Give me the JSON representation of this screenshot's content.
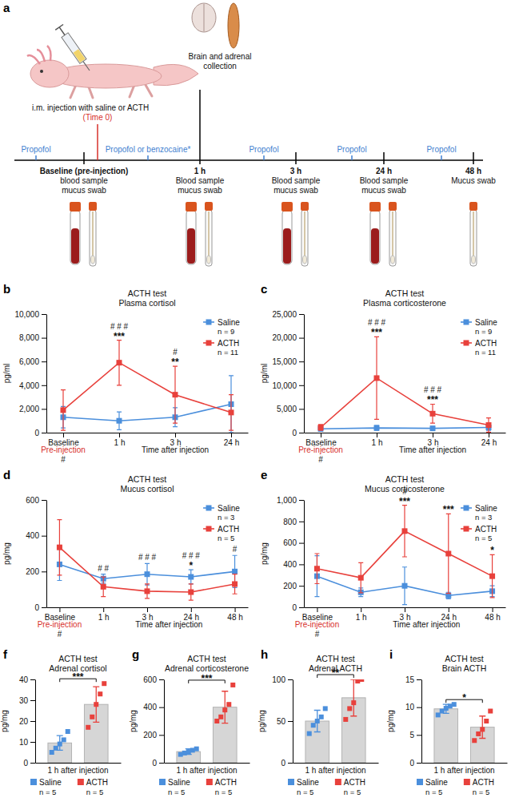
{
  "panel_a": {
    "letter": "a",
    "injection_label": "i.m. injection with saline or ACTH",
    "time_zero": "(Time 0)",
    "collection_label": "Brain and adrenal collection",
    "anesthesia": [
      "Propofol",
      "Propofol or benzocaine*",
      "Propofol",
      "Propofol",
      "Propofol"
    ],
    "timepoints": [
      {
        "time": "Baseline (pre-injection)",
        "lines": [
          "blood sample",
          "mucus swab"
        ],
        "blood": true,
        "swab": true
      },
      {
        "time": "1 h",
        "lines": [
          "Blood sample",
          "mucus swab"
        ],
        "blood": true,
        "swab": true
      },
      {
        "time": "3 h",
        "lines": [
          "Blood sample",
          "mucus swab"
        ],
        "blood": true,
        "swab": true
      },
      {
        "time": "24 h",
        "lines": [
          "Blood sample",
          "mucus swab"
        ],
        "blood": true,
        "swab": true
      },
      {
        "time": "48 h",
        "lines": [
          "Mucus swab"
        ],
        "blood": false,
        "swab": true
      }
    ]
  },
  "chart_data": [
    {
      "panel": "b",
      "type": "line",
      "title": "ACTH test",
      "subtitle": "Plasma cortisol",
      "x_label": "Time after injection",
      "y_label": "pg/ml",
      "categories": [
        "Baseline",
        "1 h",
        "3 h",
        "24 h"
      ],
      "first_category_note": "Pre-injection",
      "first_category_mark": "#",
      "ylim": [
        0,
        10000
      ],
      "yticks": [
        0,
        {
          "value": 2000,
          "label": "2,000"
        },
        {
          "value": 4000,
          "label": "4,000"
        },
        {
          "value": 6000,
          "label": "6,000"
        },
        {
          "value": 8000,
          "label": "8,000"
        },
        {
          "value": 10000,
          "label": "10,000"
        }
      ],
      "grid": false,
      "legend": "upper right",
      "marker": "square",
      "series": [
        {
          "name": "Saline",
          "n_label": "n = 9",
          "color": "#4b8fdc",
          "values": [
            1300,
            1000,
            1300,
            2400
          ],
          "errors": [
            900,
            750,
            800,
            2400
          ]
        },
        {
          "name": "ACTH",
          "n_label": "n = 11",
          "color": "#e8413c",
          "values": [
            1900,
            5900,
            3200,
            1700
          ],
          "errors": [
            1700,
            1900,
            2400,
            1500
          ]
        }
      ],
      "annotations": [
        {
          "x": 1,
          "stars": "***",
          "hashes": "# # #"
        },
        {
          "x": 2,
          "stars": "**",
          "hashes": "#"
        }
      ]
    },
    {
      "panel": "c",
      "type": "line",
      "title": "ACTH test",
      "subtitle": "Plasma corticosterone",
      "x_label": "Time after injection",
      "y_label": "pg/ml",
      "categories": [
        "Baseline",
        "1 h",
        "3 h",
        "24 h"
      ],
      "first_category_note": "Pre-injection",
      "first_category_mark": "#",
      "ylim": [
        0,
        25000
      ],
      "yticks": [
        0,
        {
          "value": 5000,
          "label": "5,000"
        },
        {
          "value": 10000,
          "label": "10,000"
        },
        {
          "value": 15000,
          "label": "15,000"
        },
        {
          "value": 20000,
          "label": "20,000"
        },
        {
          "value": 25000,
          "label": "25,000"
        }
      ],
      "grid": false,
      "legend": "upper right",
      "marker": "square",
      "series": [
        {
          "name": "Saline",
          "n_label": "n = 9",
          "color": "#4b8fdc",
          "values": [
            800,
            1000,
            900,
            1100
          ],
          "errors": [
            500,
            500,
            400,
            600
          ]
        },
        {
          "name": "ACTH",
          "n_label": "n = 11",
          "color": "#e8413c",
          "values": [
            1100,
            11500,
            4000,
            1600
          ],
          "errors": [
            600,
            8700,
            2000,
            1500
          ]
        }
      ],
      "annotations": [
        {
          "x": 1,
          "stars": "***",
          "hashes": "# # #"
        },
        {
          "x": 2,
          "stars": "***",
          "hashes": "# # #"
        }
      ]
    },
    {
      "panel": "d",
      "type": "line",
      "title": "ACTH test",
      "subtitle": "Mucus cortisol",
      "x_label": "Time after injection",
      "y_label": "pg/mg",
      "categories": [
        "Baseline",
        "1 h",
        "3 h",
        "24 h",
        "48 h"
      ],
      "first_category_note": "Pre-injection",
      "first_category_mark": "#",
      "ylim": [
        0,
        600
      ],
      "yticks": [
        0,
        200,
        400,
        600
      ],
      "grid": false,
      "legend": "upper right",
      "marker": "square",
      "series": [
        {
          "name": "Saline",
          "n_label": "n = 3",
          "color": "#4b8fdc",
          "values": [
            240,
            160,
            185,
            170,
            200
          ],
          "errors": [
            90,
            25,
            60,
            40,
            90
          ]
        },
        {
          "name": "ACTH",
          "n_label": "n = 5",
          "color": "#e8413c",
          "values": [
            335,
            115,
            90,
            85,
            130
          ],
          "errors": [
            155,
            55,
            40,
            45,
            55
          ]
        }
      ],
      "annotations": [
        {
          "x": 1,
          "hashes": "# #"
        },
        {
          "x": 2,
          "hashes": "# # #"
        },
        {
          "x": 3,
          "stars": "*",
          "hashes": "# # #"
        },
        {
          "x": 4,
          "hashes": "#"
        }
      ]
    },
    {
      "panel": "e",
      "type": "line",
      "title": "ACTH test",
      "subtitle": "Mucus corticosterone",
      "x_label": "Time after injection",
      "y_label": "pg/mg",
      "categories": [
        "Baseline",
        "1 h",
        "3 h",
        "24 h",
        "48 h"
      ],
      "first_category_note": "Pre-injection",
      "first_category_mark": "#",
      "ylim": [
        0,
        1000
      ],
      "yticks": [
        0,
        200,
        400,
        600,
        800,
        {
          "value": 1000,
          "label": "1,000"
        }
      ],
      "grid": false,
      "legend": "upper right",
      "marker": "square",
      "series": [
        {
          "name": "Saline",
          "n_label": "n = 3",
          "color": "#4b8fdc",
          "values": [
            290,
            140,
            200,
            110,
            150
          ],
          "errors": [
            190,
            40,
            175,
            30,
            50
          ]
        },
        {
          "name": "ACTH",
          "n_label": "n = 5",
          "color": "#e8413c",
          "values": [
            360,
            275,
            710,
            500,
            290
          ],
          "errors": [
            140,
            140,
            240,
            370,
            200
          ]
        }
      ],
      "annotations": [
        {
          "x": 2,
          "stars": "***",
          "hashes": "#"
        },
        {
          "x": 3,
          "stars": "***"
        },
        {
          "x": 4,
          "stars": "*"
        }
      ]
    },
    {
      "panel": "f",
      "type": "bar",
      "title": "ACTH test",
      "subtitle": "Adrenal cortisol",
      "x_label": "1 h after injection",
      "y_label": "pg/mg",
      "categories": [
        "Saline",
        "ACTH"
      ],
      "n_labels": [
        "n = 5",
        "n = 5"
      ],
      "colors": [
        "#4b8fdc",
        "#e8413c"
      ],
      "values": [
        9.5,
        28
      ],
      "errors": [
        3.5,
        8.5
      ],
      "points": [
        [
          5,
          7,
          9,
          11,
          15
        ],
        [
          17,
          22,
          28,
          33,
          38
        ]
      ],
      "ylim": [
        0,
        40
      ],
      "yticks": [
        0,
        10,
        20,
        30,
        40
      ],
      "grid": false,
      "tick_labels": "y",
      "legend": "bottom",
      "significance": "***"
    },
    {
      "panel": "g",
      "type": "bar",
      "title": "ACTH test",
      "subtitle": "Adrenal corticosterone",
      "x_label": "1 h after injection",
      "y_label": "pg/mg",
      "categories": [
        "Saline",
        "ACTH"
      ],
      "n_labels": [
        "n = 5",
        "n = 5"
      ],
      "colors": [
        "#4b8fdc",
        "#e8413c"
      ],
      "values": [
        80,
        400
      ],
      "errors": [
        20,
        115
      ],
      "points": [
        [
          60,
          70,
          80,
          90,
          100
        ],
        [
          300,
          330,
          380,
          420,
          560
        ]
      ],
      "ylim": [
        0,
        600
      ],
      "yticks": [
        0,
        200,
        400,
        600
      ],
      "grid": false,
      "tick_labels": "y",
      "legend": "bottom",
      "significance": "***"
    },
    {
      "panel": "h",
      "type": "bar",
      "title": "ACTH test",
      "subtitle": "Adrenal ACTH",
      "x_label": "1 h after injection",
      "y_label": "pg/mg",
      "categories": [
        "Saline",
        "ACTH"
      ],
      "n_labels": [
        "n = 5",
        "n = 5"
      ],
      "colors": [
        "#4b8fdc",
        "#e8413c"
      ],
      "values": [
        50,
        78
      ],
      "errors": [
        13,
        22
      ],
      "points": [
        [
          35,
          45,
          50,
          55,
          65
        ],
        [
          52,
          65,
          72,
          98,
          100
        ]
      ],
      "ylim": [
        0,
        100
      ],
      "yticks": [
        0,
        50,
        100
      ],
      "grid": false,
      "tick_labels": "y",
      "legend": "bottom",
      "significance": "**"
    },
    {
      "panel": "i",
      "type": "bar",
      "title": "ACTH test",
      "subtitle": "Brain ACTH",
      "x_label": "1 h after injection",
      "y_label": "pg/mg",
      "categories": [
        "Saline",
        "ACTH"
      ],
      "n_labels": [
        "n = 5",
        "n = 5"
      ],
      "colors": [
        "#4b8fdc",
        "#e8413c"
      ],
      "values": [
        9.7,
        6.4
      ],
      "errors": [
        0.8,
        2
      ],
      "points": [
        [
          8.6,
          9.3,
          9.8,
          10.2,
          10.5
        ],
        [
          4,
          5.2,
          6,
          7.5,
          9.3
        ]
      ],
      "ylim": [
        0,
        15
      ],
      "yticks": [
        0,
        5,
        10,
        15
      ],
      "grid": false,
      "tick_labels": "y",
      "legend": "bottom",
      "significance": "*"
    }
  ]
}
